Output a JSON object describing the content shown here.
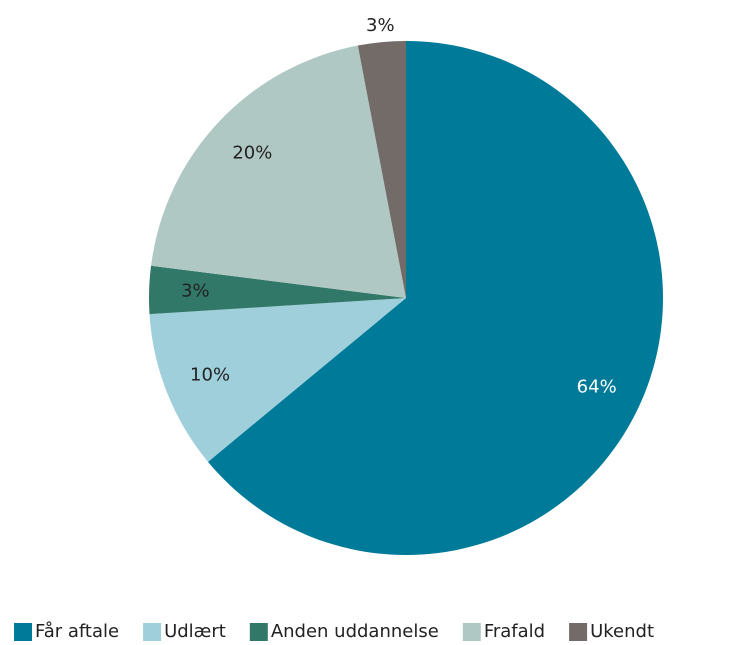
{
  "chart_data": {
    "type": "pie",
    "categories": [
      "Får aftale",
      "Udlært",
      "Anden uddannelse",
      "Frafald",
      "Ukendt"
    ],
    "values": [
      64,
      10,
      3,
      20,
      3
    ],
    "value_labels": [
      "64%",
      "10%",
      "3%",
      "20%",
      "3%"
    ],
    "colors": [
      "#007a99",
      "#9ecfdb",
      "#317868",
      "#b0c8c4",
      "#736b67"
    ],
    "legend": "bottom"
  }
}
